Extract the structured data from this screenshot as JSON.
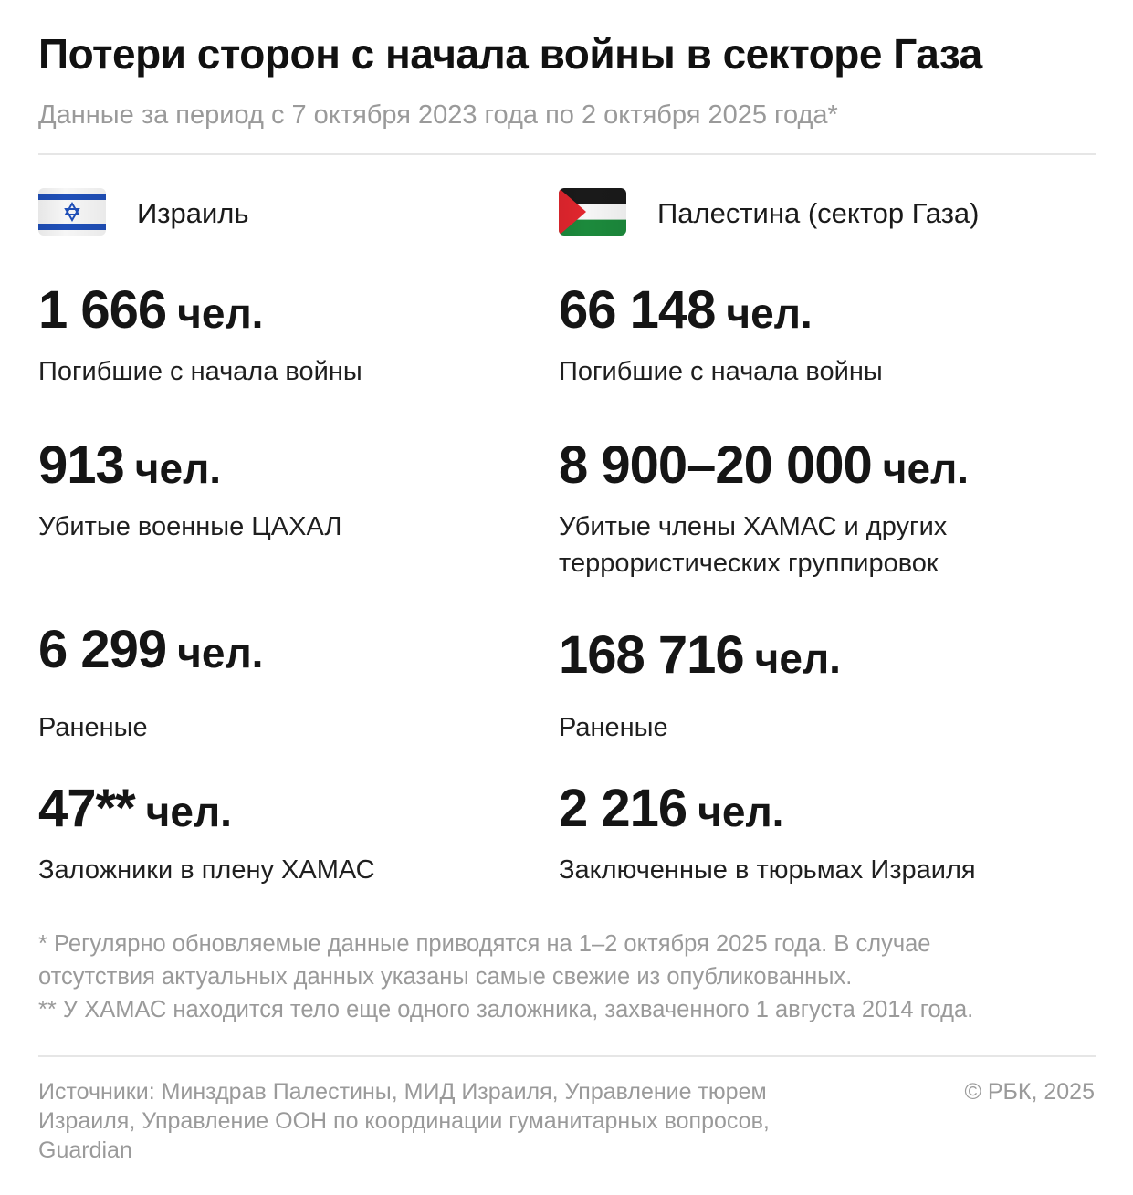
{
  "title": "Потери сторон с начала войны в секторе Газа",
  "subtitle": "Данные за период с 7 октября 2023 года по 2 октября 2025 года*",
  "colors": {
    "israel_blue": "#1f4fb8",
    "palestine_red": "#e2262e",
    "palestine_green": "#1c8a3c",
    "muted_text": "#9a9a9a"
  },
  "israel": {
    "name": "Израиль",
    "flag_icon": "israel-flag-icon",
    "stats": [
      {
        "value": "1 666",
        "unit": "чел.",
        "label": [
          "Погибшие с начала войны"
        ]
      },
      {
        "value": "913",
        "unit": "чел.",
        "label": [
          "Убитые военные ЦАХАЛ"
        ]
      },
      {
        "value": "6 299",
        "unit": "чел.",
        "label": [
          "Раненые"
        ]
      },
      {
        "value": "47**",
        "unit": "чел.",
        "label": [
          "Заложники в плену ХАМАС"
        ]
      }
    ]
  },
  "palestine": {
    "name": "Палестина (сектор Газа)",
    "flag_icon": "palestine-flag-icon",
    "stats": [
      {
        "value": "66 148",
        "unit": "чел.",
        "label": [
          "Погибшие с начала войны"
        ]
      },
      {
        "value": "8 900–20 000",
        "unit": "чел.",
        "label": [
          "Убитые члены ХАМАС и других",
          "террористических группировок"
        ]
      },
      {
        "value": "168 716",
        "unit": "чел.",
        "label": [
          "Раненые"
        ]
      },
      {
        "value": "2 216",
        "unit": "чел.",
        "label": [
          "Заключенные в тюрьмах Израиля"
        ]
      }
    ]
  },
  "notes": [
    "* Регулярно обновляемые данные приводятся на 1–2 октября 2025 года. В случае",
    "отсутствия актуальных данных указаны самые свежие из опубликованных.",
    "** У ХАМАС находится тело еще одного заложника, захваченного 1 августа 2014 года."
  ],
  "sources": [
    "Источники: Минздрав Палестины, МИД Израиля, Управление тюрем",
    "Израиля, Управление ООН по координации гуманитарных вопросов,",
    "Guardian"
  ],
  "copyright": "© РБК, 2025"
}
